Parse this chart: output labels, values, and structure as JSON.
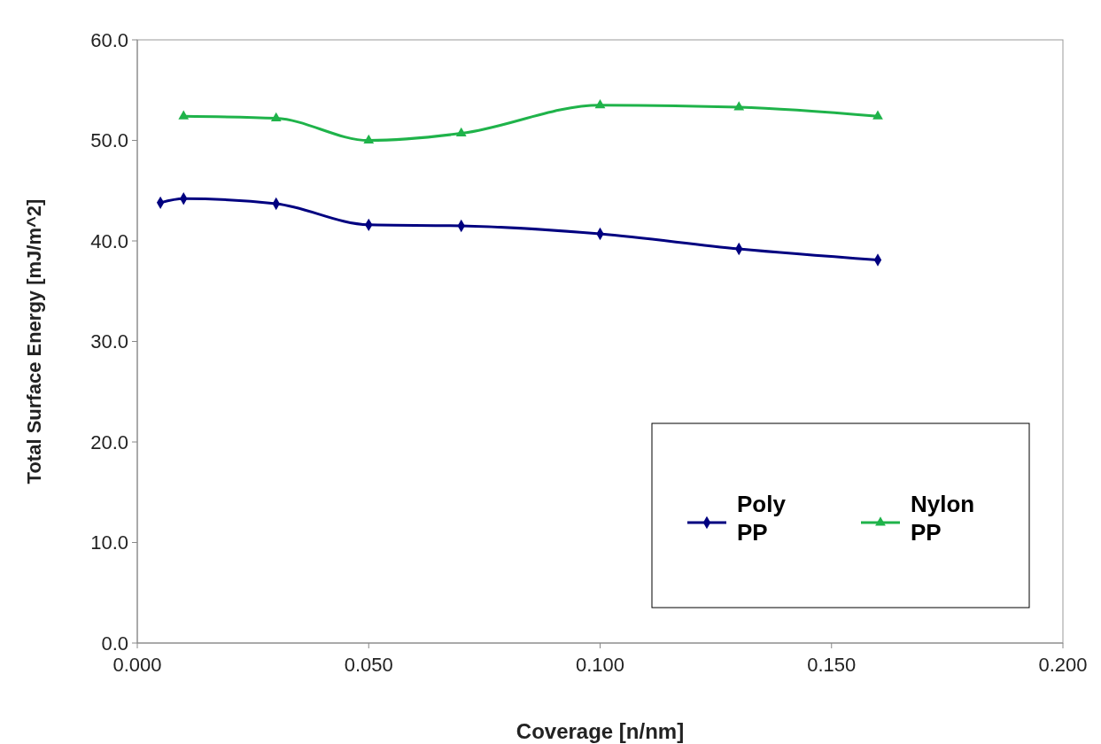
{
  "chart_data": {
    "type": "line",
    "xlabel": "Coverage [n/nm]",
    "ylabel": "Total Surface Energy [mJ/m^2]",
    "xlim": [
      0,
      0.2
    ],
    "xticks": [
      {
        "value": 0,
        "label": "0.000"
      },
      {
        "value": 0.05,
        "label": "0.050"
      },
      {
        "value": 0.1,
        "label": "0.100"
      },
      {
        "value": 0.15,
        "label": "0.150"
      },
      {
        "value": 0.2,
        "label": "0.200"
      }
    ],
    "ylim": [
      0,
      60
    ],
    "yticks": [
      {
        "value": 0,
        "label": "0.0"
      },
      {
        "value": 10,
        "label": "10.0"
      },
      {
        "value": 20,
        "label": "20.0"
      },
      {
        "value": 30,
        "label": "30.0"
      },
      {
        "value": 40,
        "label": "40.0"
      },
      {
        "value": 50,
        "label": "50.0"
      },
      {
        "value": 60,
        "label": "60.0"
      }
    ],
    "grid": false,
    "legend": "bottom right",
    "series": [
      {
        "name": "Poly PP",
        "color": "#000080",
        "marker": "diamond",
        "x": [
          0.005,
          0.01,
          0.03,
          0.05,
          0.07,
          0.1,
          0.13,
          0.16
        ],
        "values": [
          43.8,
          44.2,
          43.7,
          41.6,
          41.5,
          40.7,
          39.2,
          38.1
        ]
      },
      {
        "name": "Nylon PP",
        "color": "#1fb34a",
        "marker": "triangle",
        "x": [
          0.01,
          0.03,
          0.05,
          0.07,
          0.1,
          0.13,
          0.16
        ],
        "values": [
          52.4,
          52.2,
          50.0,
          50.7,
          53.5,
          53.3,
          52.4
        ]
      }
    ]
  }
}
